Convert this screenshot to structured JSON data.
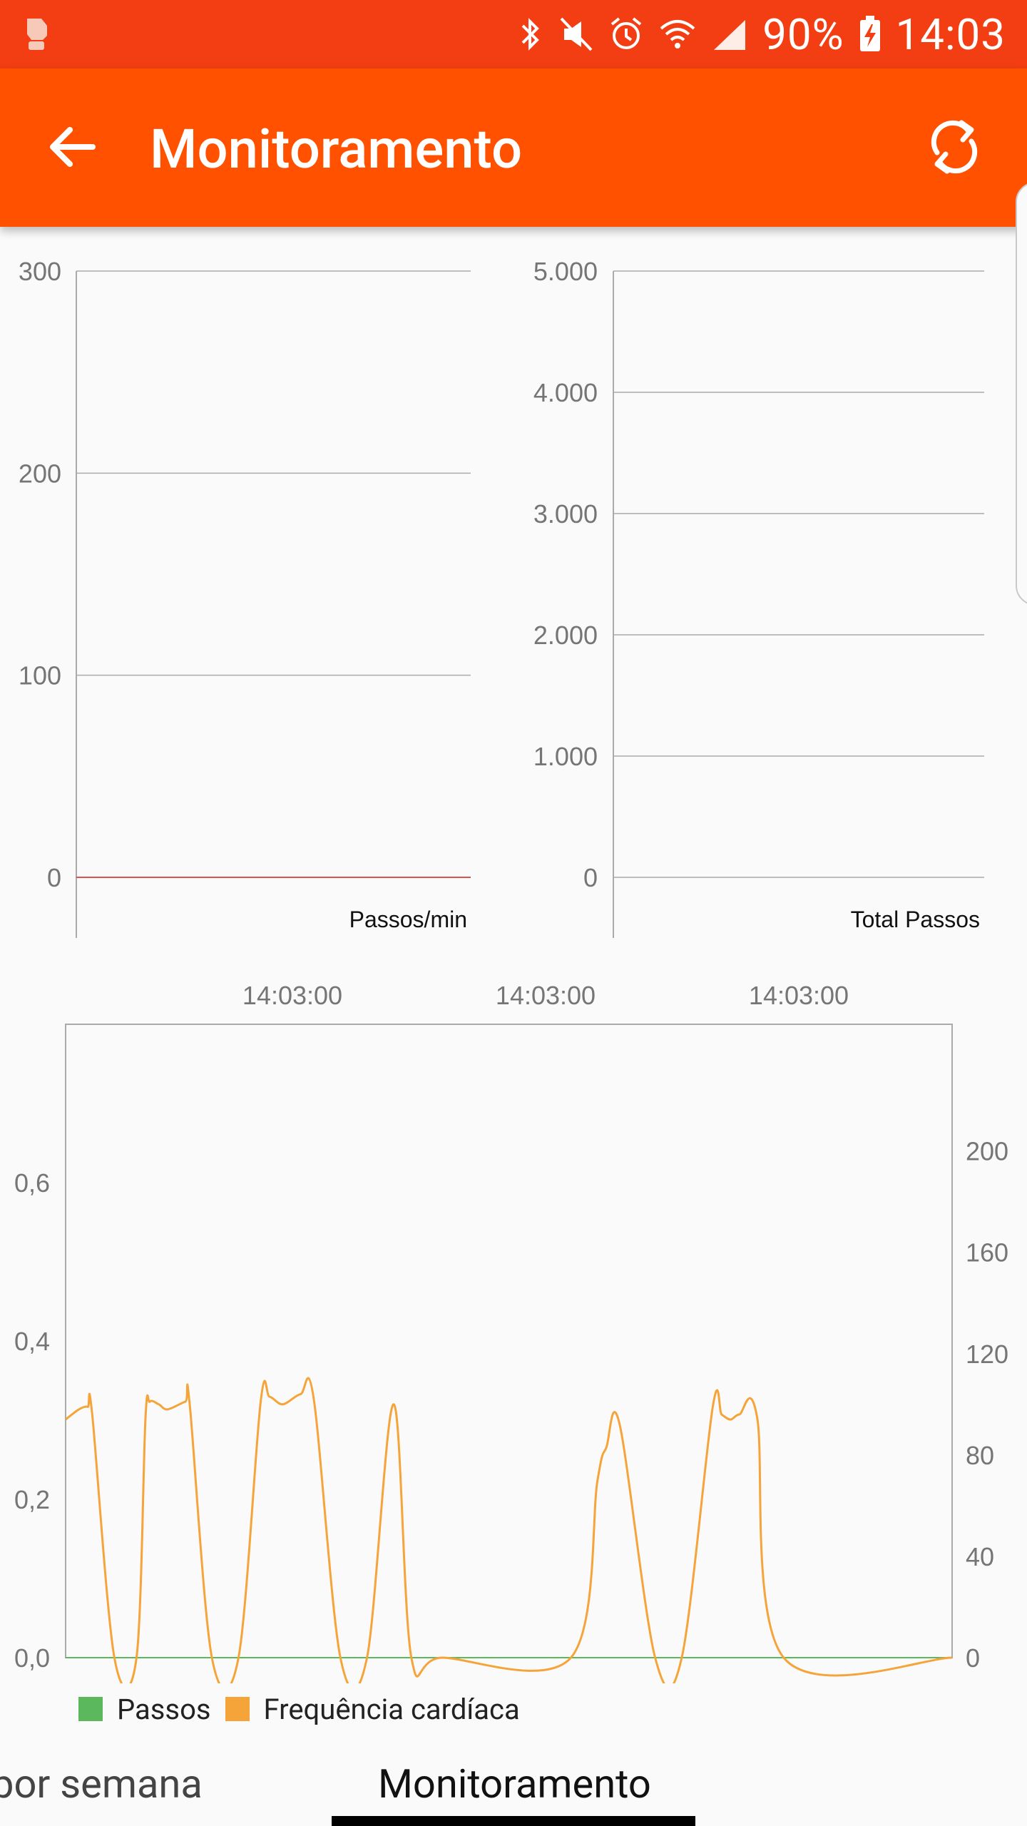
{
  "status_bar": {
    "battery": "90%",
    "time": "14:03"
  },
  "app_bar": {
    "title": "Monitoramento",
    "back_icon": "arrow-left-icon",
    "refresh_icon": "refresh-icon"
  },
  "colors": {
    "status_bar": "#f23e12",
    "app_bar": "#ff5100",
    "passos": "#5cb85c",
    "frequencia": "#f5a43a",
    "rate_line": "#d9534f"
  },
  "chart_data": [
    {
      "type": "line",
      "axis_tick_labels": [
        "300",
        "200",
        "100",
        "0"
      ],
      "ylim": [
        0,
        300
      ],
      "xlabel": "Passos/min",
      "series": [
        {
          "values": [
            0,
            0
          ]
        }
      ]
    },
    {
      "type": "line",
      "axis_tick_labels": [
        "5.000",
        "4.000",
        "3.000",
        "2.000",
        "1.000",
        "0"
      ],
      "ylim": [
        0,
        5000
      ],
      "xlabel": "Total Passos",
      "series": [
        {
          "values": []
        }
      ]
    },
    {
      "type": "line",
      "x_tick_labels": [
        "14:03:00",
        "14:03:00",
        "14:03:00"
      ],
      "left_axis_tick_labels": [
        "0,6",
        "0,4",
        "0,2",
        "0,0"
      ],
      "right_axis_tick_labels": [
        "200",
        "160",
        "120",
        "80",
        "40",
        "0"
      ],
      "left_ylim": [
        0,
        0.8
      ],
      "right_ylim": [
        0,
        250
      ],
      "legend": [
        "Passos",
        "Frequência cardíaca"
      ],
      "series": [
        {
          "name": "Passos",
          "axis": "left",
          "values": [
            [
              0,
              0
            ],
            [
              100,
              0
            ]
          ]
        },
        {
          "name": "Frequência cardíaca",
          "axis": "right",
          "values": [
            [
              0,
              94
            ],
            [
              1.5,
              98
            ],
            [
              2.5,
              99
            ],
            [
              3,
              96
            ],
            [
              5.5,
              0
            ],
            [
              8,
              0
            ],
            [
              9,
              94
            ],
            [
              9.5,
              101
            ],
            [
              10.5,
              100
            ],
            [
              11.5,
              98
            ],
            [
              13.5,
              101
            ],
            [
              14,
              100
            ],
            [
              16.5,
              0
            ],
            [
              19.5,
              0
            ],
            [
              22,
              101
            ],
            [
              23,
              103
            ],
            [
              24.5,
              100
            ],
            [
              26.5,
              104
            ],
            [
              28,
              102
            ],
            [
              31,
              0
            ],
            [
              34,
              0
            ],
            [
              37,
              100
            ],
            [
              39,
              0
            ],
            [
              42.5,
              0
            ],
            [
              57,
              0
            ],
            [
              60,
              70
            ],
            [
              61,
              83
            ],
            [
              62.5,
              92
            ],
            [
              66.5,
              0
            ],
            [
              69.5,
              0
            ],
            [
              73,
              99
            ],
            [
              74,
              96
            ],
            [
              75,
              94
            ],
            [
              76,
              96
            ],
            [
              78,
              95
            ],
            [
              81,
              0
            ],
            [
              100,
              0
            ]
          ]
        }
      ]
    }
  ],
  "legend_labels": {
    "passos": "Passos",
    "frequencia": "Frequência cardíaca"
  },
  "tabs": {
    "previous": "por semana",
    "current": "Monitoramento"
  }
}
